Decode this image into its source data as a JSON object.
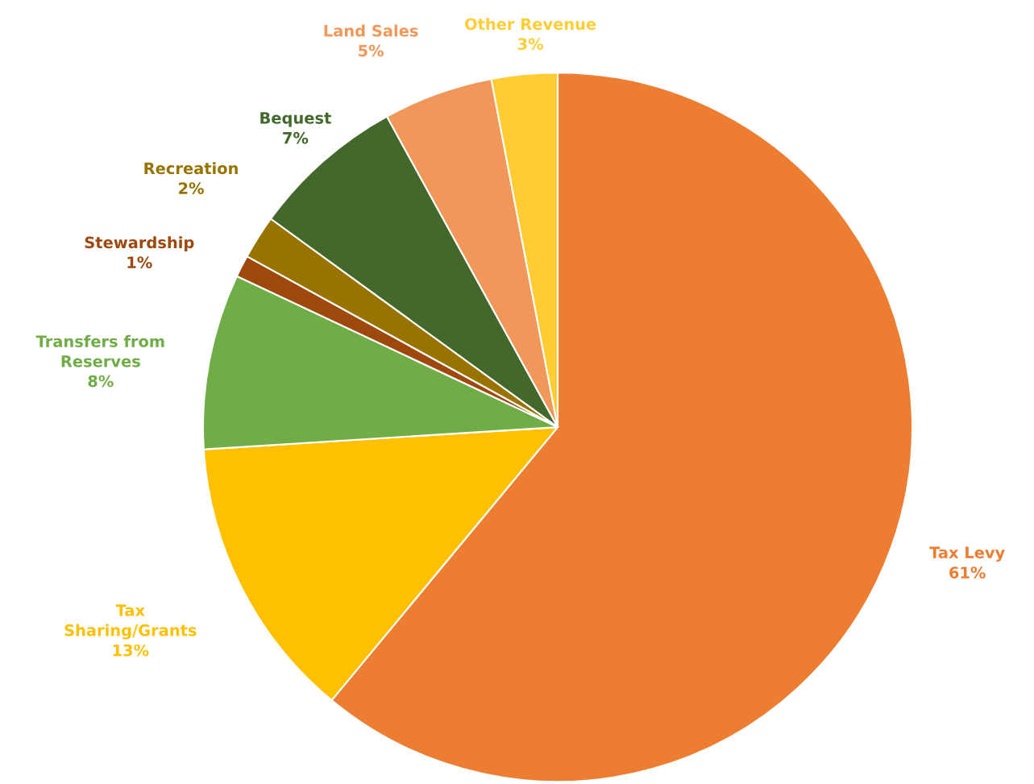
{
  "chart_data": {
    "type": "pie",
    "categories": [
      "Tax Levy",
      "Tax\nSharing/Grants",
      "Transfers from\nReserves",
      "Stewardship",
      "Recreation",
      "Bequest",
      "Land Sales",
      "Other Revenue"
    ],
    "values": [
      61,
      13,
      8,
      1,
      2,
      7,
      5,
      3
    ],
    "value_labels": [
      "61%",
      "13%",
      "8%",
      "1%",
      "2%",
      "7%",
      "5%",
      "3%"
    ],
    "colors": [
      "#ed7d31",
      "#ffc000",
      "#70ad47",
      "#9e480e",
      "#997300",
      "#43682b",
      "#f1975a",
      "#ffcd33"
    ],
    "legend": false
  }
}
